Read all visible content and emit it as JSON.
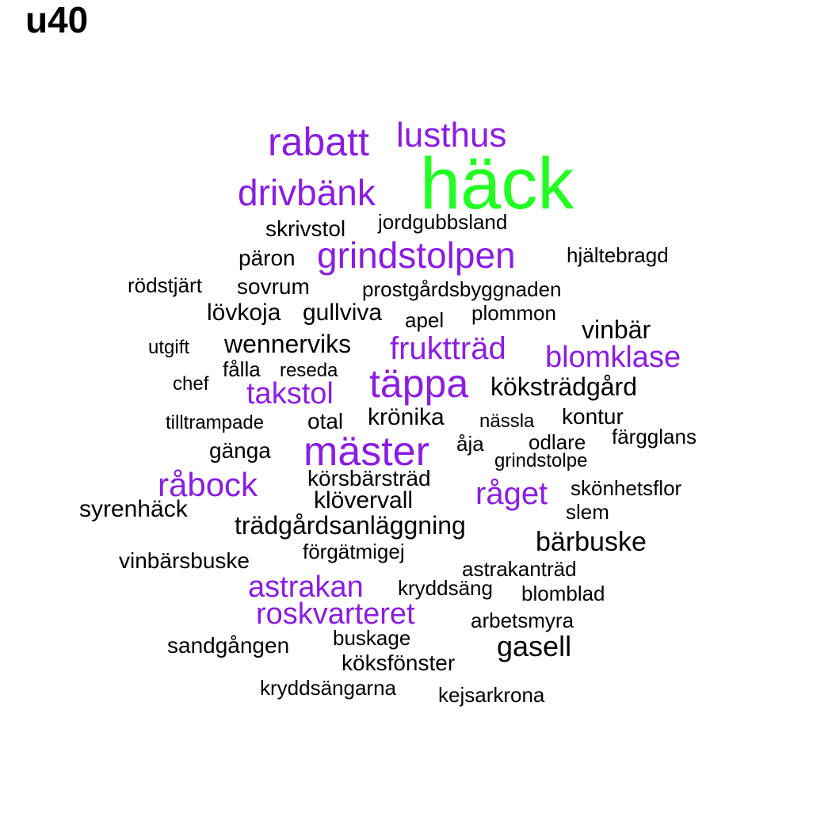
{
  "title": "u40",
  "colors": {
    "black": "#000000",
    "purple": "#8a1ee0",
    "green": "#22ff22"
  },
  "words": [
    {
      "text": "häck",
      "color": "green",
      "weight": 10
    },
    {
      "text": "rabatt",
      "color": "purple",
      "weight": 6
    },
    {
      "text": "lusthus",
      "color": "purple",
      "weight": 5
    },
    {
      "text": "drivbänk",
      "color": "purple",
      "weight": 6
    },
    {
      "text": "grindstolpen",
      "color": "purple",
      "weight": 6
    },
    {
      "text": "mäster",
      "color": "purple",
      "weight": 6
    },
    {
      "text": "täppa",
      "color": "purple",
      "weight": 6
    },
    {
      "text": "fruktträd",
      "color": "purple",
      "weight": 5
    },
    {
      "text": "blomklase",
      "color": "purple",
      "weight": 5
    },
    {
      "text": "takstol",
      "color": "purple",
      "weight": 5
    },
    {
      "text": "råbock",
      "color": "purple",
      "weight": 5
    },
    {
      "text": "råget",
      "color": "purple",
      "weight": 4
    },
    {
      "text": "astrakan",
      "color": "purple",
      "weight": 4
    },
    {
      "text": "roskvarteret",
      "color": "purple",
      "weight": 4
    },
    {
      "text": "skrivstol",
      "color": "black",
      "weight": 2
    },
    {
      "text": "jordgubbsland",
      "color": "black",
      "weight": 2
    },
    {
      "text": "päron",
      "color": "black",
      "weight": 2
    },
    {
      "text": "hjältebragd",
      "color": "black",
      "weight": 2
    },
    {
      "text": "rödstjärt",
      "color": "black",
      "weight": 2
    },
    {
      "text": "sovrum",
      "color": "black",
      "weight": 2
    },
    {
      "text": "prostgårdsbyggnaden",
      "color": "black",
      "weight": 2
    },
    {
      "text": "lövkoja",
      "color": "black",
      "weight": 2
    },
    {
      "text": "gullviva",
      "color": "black",
      "weight": 2
    },
    {
      "text": "apel",
      "color": "black",
      "weight": 1
    },
    {
      "text": "plommon",
      "color": "black",
      "weight": 2
    },
    {
      "text": "vinbär",
      "color": "black",
      "weight": 3
    },
    {
      "text": "utgift",
      "color": "black",
      "weight": 1
    },
    {
      "text": "wennerviks",
      "color": "black",
      "weight": 3
    },
    {
      "text": "fålla",
      "color": "black",
      "weight": 1
    },
    {
      "text": "reseda",
      "color": "black",
      "weight": 1
    },
    {
      "text": "chef",
      "color": "black",
      "weight": 1
    },
    {
      "text": "köksträdgård",
      "color": "black",
      "weight": 3
    },
    {
      "text": "tilltrampade",
      "color": "black",
      "weight": 1
    },
    {
      "text": "otal",
      "color": "black",
      "weight": 2
    },
    {
      "text": "krönika",
      "color": "black",
      "weight": 2
    },
    {
      "text": "nässla",
      "color": "black",
      "weight": 1
    },
    {
      "text": "kontur",
      "color": "black",
      "weight": 2
    },
    {
      "text": "färgglans",
      "color": "black",
      "weight": 2
    },
    {
      "text": "gänga",
      "color": "black",
      "weight": 2
    },
    {
      "text": "åja",
      "color": "black",
      "weight": 1
    },
    {
      "text": "odlare",
      "color": "black",
      "weight": 2
    },
    {
      "text": "grindstolpe",
      "color": "black",
      "weight": 2
    },
    {
      "text": "körsbärsträd",
      "color": "black",
      "weight": 2
    },
    {
      "text": "skönhetsflor",
      "color": "black",
      "weight": 2
    },
    {
      "text": "syrenhäck",
      "color": "black",
      "weight": 2
    },
    {
      "text": "klövervall",
      "color": "black",
      "weight": 2
    },
    {
      "text": "slem",
      "color": "black",
      "weight": 1
    },
    {
      "text": "trädgårdsanläggning",
      "color": "black",
      "weight": 3
    },
    {
      "text": "bärbuske",
      "color": "black",
      "weight": 3
    },
    {
      "text": "förgätmigej",
      "color": "black",
      "weight": 2
    },
    {
      "text": "vinbärsbuske",
      "color": "black",
      "weight": 2
    },
    {
      "text": "astrakanträd",
      "color": "black",
      "weight": 1
    },
    {
      "text": "kryddsäng",
      "color": "black",
      "weight": 1
    },
    {
      "text": "blomblad",
      "color": "black",
      "weight": 1
    },
    {
      "text": "arbetsmyra",
      "color": "black",
      "weight": 1
    },
    {
      "text": "sandgången",
      "color": "black",
      "weight": 2
    },
    {
      "text": "buskage",
      "color": "black",
      "weight": 1
    },
    {
      "text": "gasell",
      "color": "black",
      "weight": 3
    },
    {
      "text": "köksfönster",
      "color": "black",
      "weight": 2
    },
    {
      "text": "kryddsängarna",
      "color": "black",
      "weight": 1
    },
    {
      "text": "kejsarkrona",
      "color": "black",
      "weight": 1
    }
  ]
}
